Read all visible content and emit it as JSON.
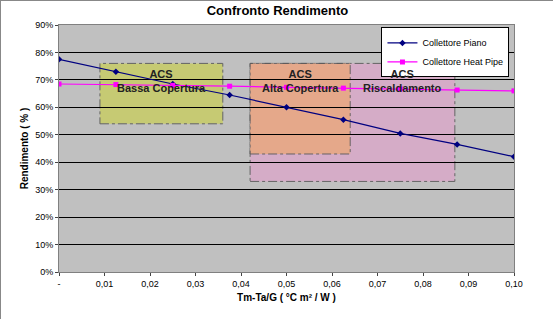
{
  "chart_data": {
    "type": "line",
    "title": "Confronto Rendimento",
    "x_label": "Tm-Ta/G ( °C m² / W )",
    "y_label": "Rendimento ( % )",
    "xlim": [
      0,
      0.1
    ],
    "ylim": [
      0,
      90
    ],
    "xticks": [
      {
        "value": 0,
        "label": "-"
      },
      {
        "value": 0.01,
        "label": "0,01"
      },
      {
        "value": 0.02,
        "label": "0,02"
      },
      {
        "value": 0.03,
        "label": "0,03"
      },
      {
        "value": 0.04,
        "label": "0,04"
      },
      {
        "value": 0.05,
        "label": "0,05"
      },
      {
        "value": 0.06,
        "label": "0,06"
      },
      {
        "value": 0.07,
        "label": "0,07"
      },
      {
        "value": 0.08,
        "label": "0,08"
      },
      {
        "value": 0.09,
        "label": "0,09"
      },
      {
        "value": 0.1,
        "label": "0,10"
      }
    ],
    "yticks": [
      {
        "value": 0,
        "label": "0%"
      },
      {
        "value": 10,
        "label": "10%"
      },
      {
        "value": 20,
        "label": "20%"
      },
      {
        "value": 30,
        "label": "30%"
      },
      {
        "value": 40,
        "label": "40%"
      },
      {
        "value": 50,
        "label": "50%"
      },
      {
        "value": 60,
        "label": "60%"
      },
      {
        "value": 70,
        "label": "70%"
      },
      {
        "value": 80,
        "label": "80%"
      },
      {
        "value": 90,
        "label": "90%"
      }
    ],
    "grid": true,
    "legend": "top right",
    "x": [
      0,
      0.0125,
      0.025,
      0.0375,
      0.05,
      0.0625,
      0.075,
      0.0875,
      0.1
    ],
    "series": [
      {
        "name": "Collettore Piano",
        "color": "#000080",
        "marker": "diamond",
        "values": [
          77.5,
          73,
          68.5,
          64.5,
          60,
          55.5,
          50.5,
          46.5,
          42
        ]
      },
      {
        "name": "Collettore Heat Pipe",
        "color": "#ff00ff",
        "marker": "square",
        "values": [
          68.5,
          68.3,
          68,
          67.7,
          67.3,
          67,
          66.7,
          66.3,
          66
        ]
      }
    ],
    "regions": [
      {
        "labels": [
          "ACS",
          "Bassa Copertura"
        ],
        "x": [
          0.009,
          0.036
        ],
        "y": [
          54,
          76
        ],
        "color": "#c8cc66"
      },
      {
        "labels": [
          "ACS",
          "Riscaldamento"
        ],
        "x": [
          0.042,
          0.087
        ],
        "y": [
          33,
          76
        ],
        "color": "#d9a9c9"
      },
      {
        "labels": [
          "ACS",
          "Alta Copertura"
        ],
        "x": [
          0.042,
          0.064
        ],
        "y": [
          43,
          76
        ],
        "color": "#e8a880"
      }
    ]
  }
}
